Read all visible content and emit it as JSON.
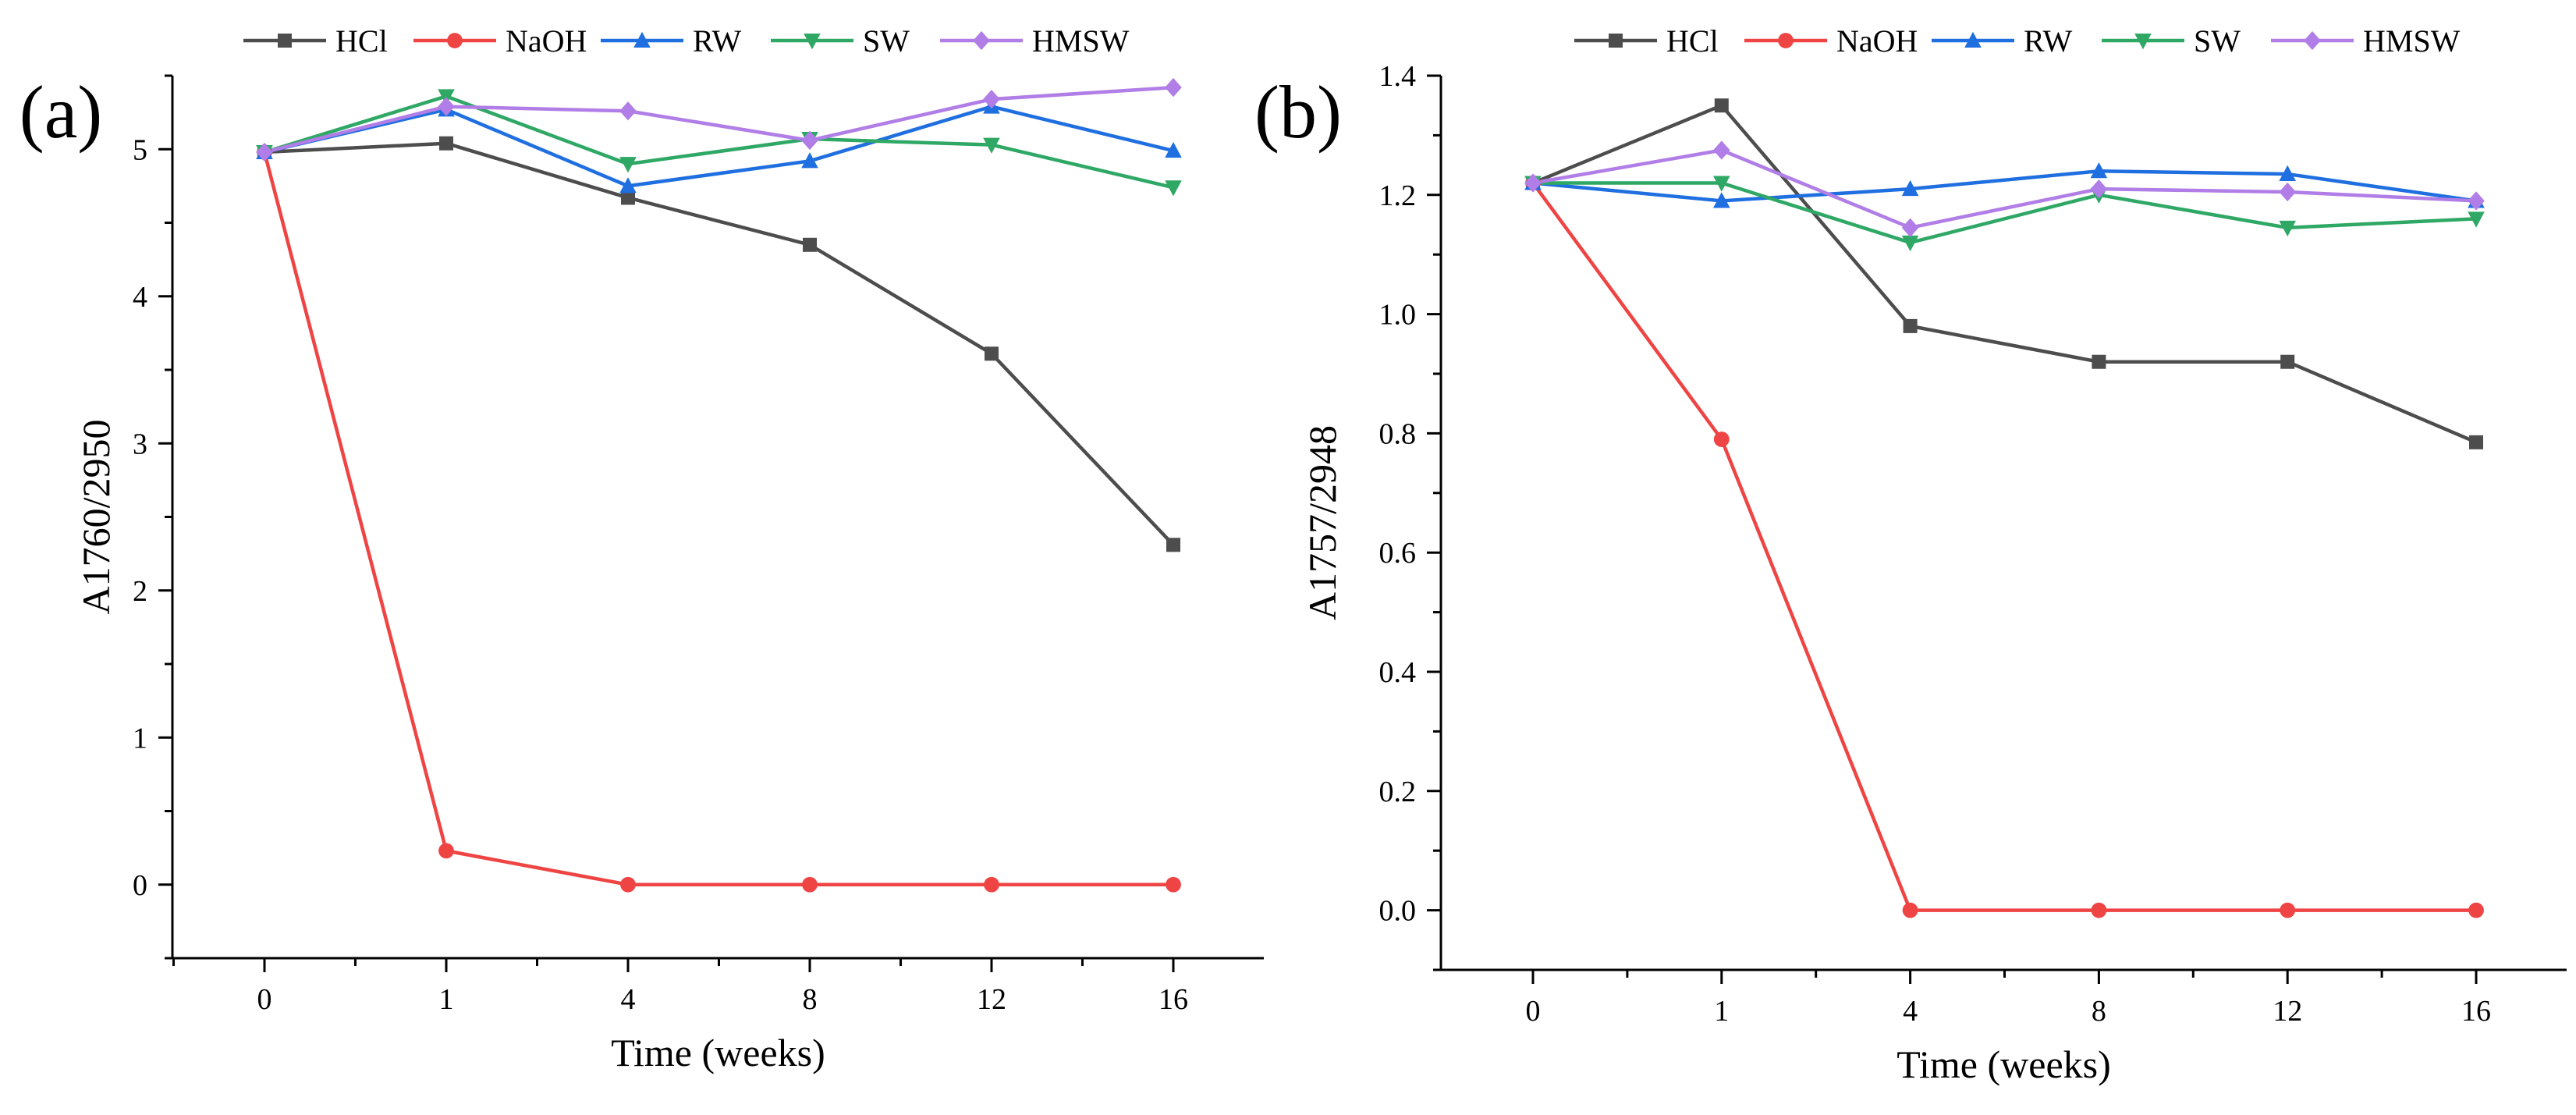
{
  "chart_data": [
    {
      "type": "line",
      "panel_label": "(a)",
      "categories": [
        "0",
        "1",
        "4",
        "8",
        "12",
        "16"
      ],
      "xlabel": "Time (weeks)",
      "ylabel": "A1760/2950",
      "ylim": [
        -0.5,
        5.5
      ],
      "yticks": [
        "0",
        "1",
        "2",
        "3",
        "4",
        "5"
      ],
      "legend_position": "top",
      "series": [
        {
          "name": "HCl",
          "color": "#4d4d4d",
          "marker": "square",
          "values": [
            4.98,
            5.04,
            4.67,
            4.35,
            3.61,
            2.31
          ]
        },
        {
          "name": "NaOH",
          "color": "#ef4444",
          "marker": "circle",
          "values": [
            4.98,
            0.23,
            0.0,
            0.0,
            0.0,
            0.0
          ]
        },
        {
          "name": "RW",
          "color": "#1f6fe0",
          "marker": "triangle-up",
          "values": [
            4.98,
            5.27,
            4.75,
            4.92,
            5.29,
            4.99
          ]
        },
        {
          "name": "SW",
          "color": "#2fa866",
          "marker": "triangle-down",
          "values": [
            4.98,
            5.36,
            4.9,
            5.07,
            5.03,
            4.74
          ]
        },
        {
          "name": "HMSW",
          "color": "#b07ee6",
          "marker": "diamond",
          "values": [
            4.98,
            5.29,
            5.26,
            5.06,
            5.34,
            5.42
          ]
        }
      ]
    },
    {
      "type": "line",
      "panel_label": "(b)",
      "categories": [
        "0",
        "1",
        "4",
        "8",
        "12",
        "16"
      ],
      "xlabel": "Time (weeks)",
      "ylabel": "A1757/2948",
      "ylim": [
        -0.1,
        1.4
      ],
      "yticks": [
        "0.0",
        "0.2",
        "0.4",
        "0.6",
        "0.8",
        "1.0",
        "1.2",
        "1.4"
      ],
      "legend_position": "top",
      "series": [
        {
          "name": "HCl",
          "color": "#4d4d4d",
          "marker": "square",
          "values": [
            1.22,
            1.35,
            0.98,
            0.92,
            0.92,
            0.785
          ]
        },
        {
          "name": "NaOH",
          "color": "#ef4444",
          "marker": "circle",
          "values": [
            1.22,
            0.79,
            0.0,
            0.0,
            0.0,
            0.0
          ]
        },
        {
          "name": "RW",
          "color": "#1f6fe0",
          "marker": "triangle-up",
          "values": [
            1.22,
            1.19,
            1.21,
            1.24,
            1.235,
            1.19
          ]
        },
        {
          "name": "SW",
          "color": "#2fa866",
          "marker": "triangle-down",
          "values": [
            1.22,
            1.22,
            1.12,
            1.2,
            1.145,
            1.16
          ]
        },
        {
          "name": "HMSW",
          "color": "#b07ee6",
          "marker": "diamond",
          "values": [
            1.22,
            1.275,
            1.145,
            1.21,
            1.205,
            1.19
          ]
        }
      ]
    }
  ]
}
